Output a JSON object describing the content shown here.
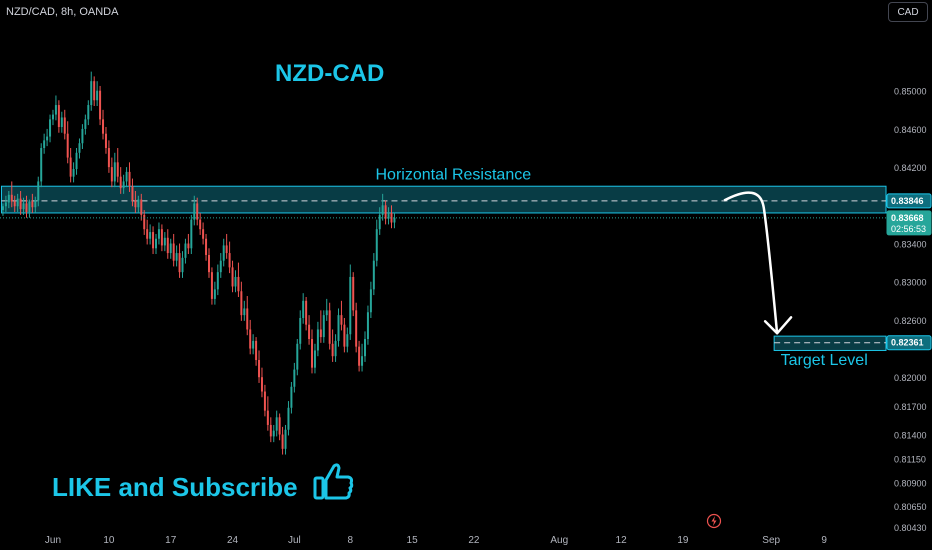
{
  "header": {
    "symbol_line": "NZD/CAD, 8h, OANDA"
  },
  "currency_button": {
    "label": "CAD"
  },
  "overlay": {
    "like_text": "LIKE and Subscribe"
  },
  "icons": {
    "thumb": "thumbs-up-icon",
    "flash": "lightning-icon"
  },
  "colors": {
    "up": "#26a69a",
    "down": "#ef5350",
    "accent": "#1cc6e8",
    "zone": "#0e6e7e",
    "text": "#d1d4dc"
  },
  "chart_data": {
    "type": "candlestick",
    "title": "NZD-CAD",
    "ylim": [
      0.804,
      0.8595
    ],
    "y_ticks": [
      "0.85000",
      "0.84600",
      "0.84200",
      "0.83400",
      "0.83000",
      "0.82600",
      "0.82000",
      "0.81700",
      "0.81400",
      "0.81150",
      "0.80900",
      "0.80650",
      "0.80430"
    ],
    "x_ticks": [
      {
        "label": "Jun",
        "x": 0
      },
      {
        "label": "10",
        "x": 19
      },
      {
        "label": "17",
        "x": 40
      },
      {
        "label": "24",
        "x": 61
      },
      {
        "label": "Jul",
        "x": 82
      },
      {
        "label": "8",
        "x": 101
      },
      {
        "label": "15",
        "x": 122
      },
      {
        "label": "22",
        "x": 143
      },
      {
        "label": "Aug",
        "x": 172
      },
      {
        "label": "12",
        "x": 193
      },
      {
        "label": "19",
        "x": 214
      },
      {
        "label": "Sep",
        "x": 244
      },
      {
        "label": "9",
        "x": 262
      }
    ],
    "x_range": [
      -18,
      283
    ],
    "price_labels": [
      {
        "label": "0.83846",
        "value": 0.83846,
        "style": "zone"
      },
      {
        "label": "0.83668",
        "value": 0.83668,
        "sub": "02:56:53",
        "style": "current"
      },
      {
        "label": "0.82361",
        "value": 0.82361,
        "style": "target"
      }
    ],
    "current_price": 0.83668,
    "resistance_zone": {
      "label": "Horizontal Resistance",
      "low": 0.8372,
      "high": 0.84,
      "level": 0.83846
    },
    "target_zone": {
      "label": "Target Level",
      "low": 0.8228,
      "high": 0.8243,
      "level": 0.82361,
      "x_start": 245
    },
    "projection": {
      "from_x": 228,
      "from_y": 0.8385,
      "peak_x": 234,
      "peak_y": 0.8388,
      "to_x": 246,
      "to_y": 0.8246
    },
    "candles": [
      {
        "x": -17,
        "o": 0.8375,
        "h": 0.8382,
        "c": 0.8379
      },
      {
        "x": -16,
        "o": 0.8379,
        "h": 0.839,
        "c": 0.8383
      },
      {
        "x": -15,
        "o": 0.8383,
        "h": 0.8395,
        "c": 0.8391
      },
      {
        "x": -14,
        "o": 0.8391,
        "h": 0.8405,
        "c": 0.8384
      },
      {
        "x": -13,
        "o": 0.8384,
        "h": 0.839,
        "c": 0.8379
      },
      {
        "x": -12,
        "o": 0.8379,
        "h": 0.8392,
        "c": 0.8387
      },
      {
        "x": -11,
        "o": 0.8387,
        "h": 0.8395,
        "c": 0.8376
      },
      {
        "x": -10,
        "o": 0.8376,
        "h": 0.8388,
        "c": 0.8382
      },
      {
        "x": -9,
        "o": 0.8382,
        "h": 0.839,
        "c": 0.8373
      },
      {
        "x": -8,
        "o": 0.8373,
        "h": 0.8386,
        "c": 0.8384
      },
      {
        "x": -7,
        "o": 0.8384,
        "h": 0.8392,
        "c": 0.8378
      },
      {
        "x": -6,
        "o": 0.8378,
        "h": 0.8389,
        "c": 0.8385
      },
      {
        "x": -5,
        "o": 0.8385,
        "h": 0.841,
        "c": 0.8405
      },
      {
        "x": -4,
        "o": 0.8405,
        "h": 0.8445,
        "c": 0.844
      },
      {
        "x": -3,
        "o": 0.844,
        "h": 0.8455,
        "c": 0.8448
      },
      {
        "x": -2,
        "o": 0.8448,
        "h": 0.846,
        "c": 0.8452
      },
      {
        "x": -1,
        "o": 0.8452,
        "h": 0.8475,
        "c": 0.847
      },
      {
        "x": 0,
        "o": 0.847,
        "h": 0.848,
        "c": 0.8475
      },
      {
        "x": 1,
        "o": 0.8475,
        "h": 0.8495,
        "c": 0.8485
      },
      {
        "x": 2,
        "o": 0.8485,
        "h": 0.849,
        "c": 0.8462
      },
      {
        "x": 3,
        "o": 0.8462,
        "h": 0.8478,
        "c": 0.8472
      },
      {
        "x": 4,
        "o": 0.8472,
        "h": 0.848,
        "c": 0.8455
      },
      {
        "x": 5,
        "o": 0.8455,
        "h": 0.8468,
        "c": 0.843
      },
      {
        "x": 6,
        "o": 0.843,
        "h": 0.844,
        "c": 0.841
      },
      {
        "x": 7,
        "o": 0.841,
        "h": 0.8425,
        "c": 0.8418
      },
      {
        "x": 8,
        "o": 0.8418,
        "h": 0.844,
        "c": 0.8435
      },
      {
        "x": 9,
        "o": 0.8435,
        "h": 0.845,
        "c": 0.8445
      },
      {
        "x": 10,
        "o": 0.8445,
        "h": 0.8465,
        "c": 0.846
      },
      {
        "x": 11,
        "o": 0.846,
        "h": 0.8475,
        "c": 0.847
      },
      {
        "x": 12,
        "o": 0.847,
        "h": 0.849,
        "c": 0.8485
      },
      {
        "x": 13,
        "o": 0.8485,
        "h": 0.852,
        "c": 0.851
      },
      {
        "x": 14,
        "o": 0.851,
        "h": 0.8515,
        "c": 0.849
      },
      {
        "x": 15,
        "o": 0.849,
        "h": 0.851,
        "c": 0.85
      },
      {
        "x": 16,
        "o": 0.85,
        "h": 0.8505,
        "c": 0.847
      },
      {
        "x": 17,
        "o": 0.847,
        "h": 0.848,
        "c": 0.8455
      },
      {
        "x": 18,
        "o": 0.8455,
        "h": 0.8462,
        "c": 0.844
      },
      {
        "x": 19,
        "o": 0.844,
        "h": 0.8448,
        "c": 0.842
      },
      {
        "x": 20,
        "o": 0.842,
        "h": 0.843,
        "c": 0.8405
      },
      {
        "x": 21,
        "o": 0.8405,
        "h": 0.8435,
        "c": 0.8425
      },
      {
        "x": 22,
        "o": 0.8425,
        "h": 0.844,
        "c": 0.841
      },
      {
        "x": 23,
        "o": 0.841,
        "h": 0.842,
        "c": 0.8398
      },
      {
        "x": 24,
        "o": 0.8398,
        "h": 0.8412,
        "c": 0.8405
      },
      {
        "x": 25,
        "o": 0.8405,
        "h": 0.842,
        "c": 0.8415
      },
      {
        "x": 26,
        "o": 0.8415,
        "h": 0.8425,
        "c": 0.84
      },
      {
        "x": 27,
        "o": 0.84,
        "h": 0.8408,
        "c": 0.8385
      },
      {
        "x": 28,
        "o": 0.8385,
        "h": 0.8395,
        "c": 0.8378
      },
      {
        "x": 29,
        "o": 0.8378,
        "h": 0.839,
        "c": 0.8386
      },
      {
        "x": 30,
        "o": 0.8386,
        "h": 0.8392,
        "c": 0.837
      },
      {
        "x": 31,
        "o": 0.837,
        "h": 0.8375,
        "c": 0.8355
      },
      {
        "x": 32,
        "o": 0.8355,
        "h": 0.8365,
        "c": 0.8345
      },
      {
        "x": 33,
        "o": 0.8345,
        "h": 0.836,
        "c": 0.8352
      },
      {
        "x": 34,
        "o": 0.8352,
        "h": 0.8358,
        "c": 0.8335
      },
      {
        "x": 35,
        "o": 0.8335,
        "h": 0.835,
        "c": 0.8345
      },
      {
        "x": 36,
        "o": 0.8345,
        "h": 0.8362,
        "c": 0.8355
      },
      {
        "x": 37,
        "o": 0.8355,
        "h": 0.836,
        "c": 0.8338
      },
      {
        "x": 38,
        "o": 0.8338,
        "h": 0.8352,
        "c": 0.8346
      },
      {
        "x": 39,
        "o": 0.8346,
        "h": 0.8355,
        "c": 0.833
      },
      {
        "x": 40,
        "o": 0.833,
        "h": 0.8345,
        "c": 0.834
      },
      {
        "x": 41,
        "o": 0.834,
        "h": 0.835,
        "c": 0.8322
      },
      {
        "x": 42,
        "o": 0.8322,
        "h": 0.8338,
        "c": 0.833
      },
      {
        "x": 43,
        "o": 0.833,
        "h": 0.834,
        "c": 0.831
      },
      {
        "x": 44,
        "o": 0.831,
        "h": 0.8332,
        "c": 0.8325
      },
      {
        "x": 45,
        "o": 0.8325,
        "h": 0.8345,
        "c": 0.834
      },
      {
        "x": 46,
        "o": 0.834,
        "h": 0.835,
        "c": 0.8335
      },
      {
        "x": 47,
        "o": 0.8335,
        "h": 0.837,
        "c": 0.8365
      },
      {
        "x": 48,
        "o": 0.8365,
        "h": 0.839,
        "c": 0.8382
      },
      {
        "x": 49,
        "o": 0.8382,
        "h": 0.8388,
        "c": 0.8365
      },
      {
        "x": 50,
        "o": 0.8365,
        "h": 0.8372,
        "c": 0.8355
      },
      {
        "x": 51,
        "o": 0.8355,
        "h": 0.8362,
        "c": 0.8345
      },
      {
        "x": 52,
        "o": 0.8345,
        "h": 0.835,
        "c": 0.8328
      },
      {
        "x": 53,
        "o": 0.8328,
        "h": 0.8335,
        "c": 0.831
      },
      {
        "x": 54,
        "o": 0.831,
        "h": 0.8315,
        "c": 0.8282
      },
      {
        "x": 55,
        "o": 0.8282,
        "h": 0.83,
        "c": 0.8292
      },
      {
        "x": 56,
        "o": 0.8292,
        "h": 0.8318,
        "c": 0.831
      },
      {
        "x": 57,
        "o": 0.831,
        "h": 0.833,
        "c": 0.8322
      },
      {
        "x": 58,
        "o": 0.8322,
        "h": 0.8345,
        "c": 0.8338
      },
      {
        "x": 59,
        "o": 0.8338,
        "h": 0.835,
        "c": 0.833
      },
      {
        "x": 60,
        "o": 0.833,
        "h": 0.8342,
        "c": 0.8315
      },
      {
        "x": 61,
        "o": 0.8315,
        "h": 0.8322,
        "c": 0.8295
      },
      {
        "x": 62,
        "o": 0.8295,
        "h": 0.8312,
        "c": 0.8305
      },
      {
        "x": 63,
        "o": 0.8305,
        "h": 0.832,
        "c": 0.829
      },
      {
        "x": 64,
        "o": 0.829,
        "h": 0.83,
        "c": 0.8265
      },
      {
        "x": 65,
        "o": 0.8265,
        "h": 0.828,
        "c": 0.8272
      },
      {
        "x": 66,
        "o": 0.8272,
        "h": 0.8285,
        "c": 0.825
      },
      {
        "x": 67,
        "o": 0.825,
        "h": 0.826,
        "c": 0.823
      },
      {
        "x": 68,
        "o": 0.823,
        "h": 0.8245,
        "c": 0.8238
      },
      {
        "x": 69,
        "o": 0.8238,
        "h": 0.8242,
        "c": 0.8218
      },
      {
        "x": 70,
        "o": 0.8218,
        "h": 0.8228,
        "c": 0.82
      },
      {
        "x": 71,
        "o": 0.82,
        "h": 0.821,
        "c": 0.8185
      },
      {
        "x": 72,
        "o": 0.8185,
        "h": 0.8192,
        "c": 0.8165
      },
      {
        "x": 73,
        "o": 0.8165,
        "h": 0.818,
        "c": 0.815
      },
      {
        "x": 74,
        "o": 0.815,
        "h": 0.8158,
        "c": 0.8138
      },
      {
        "x": 75,
        "o": 0.8138,
        "h": 0.815,
        "c": 0.8144
      },
      {
        "x": 76,
        "o": 0.8144,
        "h": 0.8165,
        "c": 0.8158
      },
      {
        "x": 77,
        "o": 0.8158,
        "h": 0.8162,
        "c": 0.814
      },
      {
        "x": 78,
        "o": 0.814,
        "h": 0.8148,
        "c": 0.8125
      },
      {
        "x": 79,
        "o": 0.8125,
        "h": 0.815,
        "c": 0.8145
      },
      {
        "x": 80,
        "o": 0.8145,
        "h": 0.8175,
        "c": 0.8168
      },
      {
        "x": 81,
        "o": 0.8168,
        "h": 0.8195,
        "c": 0.819
      },
      {
        "x": 82,
        "o": 0.819,
        "h": 0.8215,
        "c": 0.8208
      },
      {
        "x": 83,
        "o": 0.8208,
        "h": 0.824,
        "c": 0.8235
      },
      {
        "x": 84,
        "o": 0.8235,
        "h": 0.827,
        "c": 0.8262
      },
      {
        "x": 85,
        "o": 0.8262,
        "h": 0.8288,
        "c": 0.828
      },
      {
        "x": 86,
        "o": 0.828,
        "h": 0.8284,
        "c": 0.8255
      },
      {
        "x": 87,
        "o": 0.8255,
        "h": 0.8265,
        "c": 0.824
      },
      {
        "x": 88,
        "o": 0.824,
        "h": 0.825,
        "c": 0.821
      },
      {
        "x": 89,
        "o": 0.821,
        "h": 0.8235,
        "c": 0.8228
      },
      {
        "x": 90,
        "o": 0.8228,
        "h": 0.8258,
        "c": 0.825
      },
      {
        "x": 91,
        "o": 0.825,
        "h": 0.827,
        "c": 0.8242
      },
      {
        "x": 92,
        "o": 0.8242,
        "h": 0.827,
        "c": 0.8265
      },
      {
        "x": 93,
        "o": 0.8265,
        "h": 0.8282,
        "c": 0.827
      },
      {
        "x": 94,
        "o": 0.827,
        "h": 0.8278,
        "c": 0.8235
      },
      {
        "x": 95,
        "o": 0.8235,
        "h": 0.825,
        "c": 0.8222
      },
      {
        "x": 96,
        "o": 0.8222,
        "h": 0.8245,
        "c": 0.8238
      },
      {
        "x": 97,
        "o": 0.8238,
        "h": 0.8272,
        "c": 0.8265
      },
      {
        "x": 98,
        "o": 0.8265,
        "h": 0.828,
        "c": 0.8255
      },
      {
        "x": 99,
        "o": 0.8255,
        "h": 0.8262,
        "c": 0.8232
      },
      {
        "x": 100,
        "o": 0.8232,
        "h": 0.8252,
        "c": 0.8245
      },
      {
        "x": 101,
        "o": 0.8245,
        "h": 0.8318,
        "c": 0.8305
      },
      {
        "x": 102,
        "o": 0.8305,
        "h": 0.831,
        "c": 0.827
      },
      {
        "x": 103,
        "o": 0.827,
        "h": 0.8278,
        "c": 0.8232
      },
      {
        "x": 104,
        "o": 0.8232,
        "h": 0.8238,
        "c": 0.8212
      },
      {
        "x": 105,
        "o": 0.8212,
        "h": 0.8235,
        "c": 0.8222
      },
      {
        "x": 106,
        "o": 0.8222,
        "h": 0.8248,
        "c": 0.824
      },
      {
        "x": 107,
        "o": 0.824,
        "h": 0.8275,
        "c": 0.8268
      },
      {
        "x": 108,
        "o": 0.8268,
        "h": 0.83,
        "c": 0.8292
      },
      {
        "x": 109,
        "o": 0.8292,
        "h": 0.833,
        "c": 0.8322
      },
      {
        "x": 110,
        "o": 0.8322,
        "h": 0.8365,
        "c": 0.8355
      },
      {
        "x": 111,
        "o": 0.8355,
        "h": 0.8378,
        "c": 0.837
      },
      {
        "x": 112,
        "o": 0.837,
        "h": 0.8392,
        "c": 0.838
      },
      {
        "x": 113,
        "o": 0.838,
        "h": 0.8385,
        "c": 0.8366
      },
      {
        "x": 114,
        "o": 0.8366,
        "h": 0.8378,
        "c": 0.8372
      },
      {
        "x": 115,
        "o": 0.8372,
        "h": 0.838,
        "c": 0.8362
      },
      {
        "x": 116,
        "o": 0.8362,
        "h": 0.8372,
        "c": 0.8367
      }
    ]
  }
}
